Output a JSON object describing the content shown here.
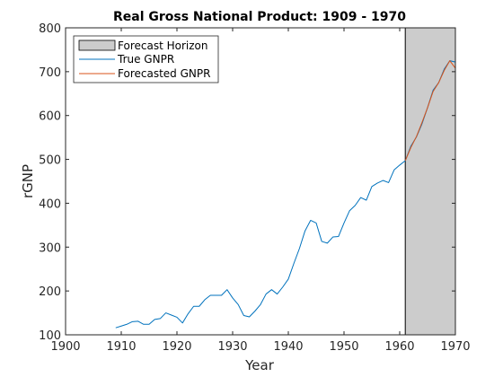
{
  "chart_data": {
    "type": "line",
    "title": "Real Gross National Product: 1909 - 1970",
    "xlabel": "Year",
    "ylabel": "rGNP",
    "xlim": [
      1900,
      1970
    ],
    "ylim": [
      100,
      800
    ],
    "xticks": [
      1900,
      1910,
      1920,
      1930,
      1940,
      1950,
      1960,
      1970
    ],
    "yticks": [
      100,
      200,
      300,
      400,
      500,
      600,
      700,
      800
    ],
    "grid": false,
    "legend_placement": "top-left",
    "forecast_horizon": {
      "start": 1961,
      "end": 1970,
      "color": "#cccccc"
    },
    "legend": [
      {
        "key": "horizon",
        "label": "Forecast Horizon",
        "color": "#cccccc"
      },
      {
        "key": "true",
        "label": "True GNPR",
        "color": "#0072bd"
      },
      {
        "key": "forecast",
        "label": "Forecasted GNPR",
        "color": "#d95319"
      }
    ],
    "series": [
      {
        "name": "True GNPR",
        "color": "#0072bd",
        "x": [
          1909,
          1910,
          1911,
          1912,
          1913,
          1914,
          1915,
          1916,
          1917,
          1918,
          1919,
          1920,
          1921,
          1922,
          1923,
          1924,
          1925,
          1926,
          1927,
          1928,
          1929,
          1930,
          1931,
          1932,
          1933,
          1934,
          1935,
          1936,
          1937,
          1938,
          1939,
          1940,
          1941,
          1942,
          1943,
          1944,
          1945,
          1946,
          1947,
          1948,
          1949,
          1950,
          1951,
          1952,
          1953,
          1954,
          1955,
          1956,
          1957,
          1958,
          1959,
          1960,
          1961,
          1962,
          1963,
          1964,
          1965,
          1966,
          1967,
          1968,
          1969,
          1970
        ],
        "y": [
          116,
          120,
          124,
          130,
          131,
          124,
          124,
          135,
          137,
          150,
          145,
          140,
          127,
          148,
          165,
          165,
          180,
          190,
          190,
          190,
          203,
          184,
          169,
          144,
          141,
          154,
          169,
          193,
          203,
          193,
          209,
          227,
          263,
          297,
          337,
          361,
          355,
          313,
          309,
          323,
          324,
          355,
          383,
          395,
          413,
          407,
          438,
          446,
          452,
          447,
          476,
          487,
          497,
          530,
          551,
          581,
          618,
          658,
          675,
          706,
          725,
          722
        ]
      },
      {
        "name": "Forecasted GNPR",
        "color": "#d95319",
        "x": [
          1961,
          1962,
          1963,
          1964,
          1965,
          1966,
          1967,
          1968,
          1969,
          1970
        ],
        "y": [
          497,
          527,
          552,
          584,
          618,
          655,
          675,
          703,
          725,
          708
        ]
      }
    ]
  }
}
